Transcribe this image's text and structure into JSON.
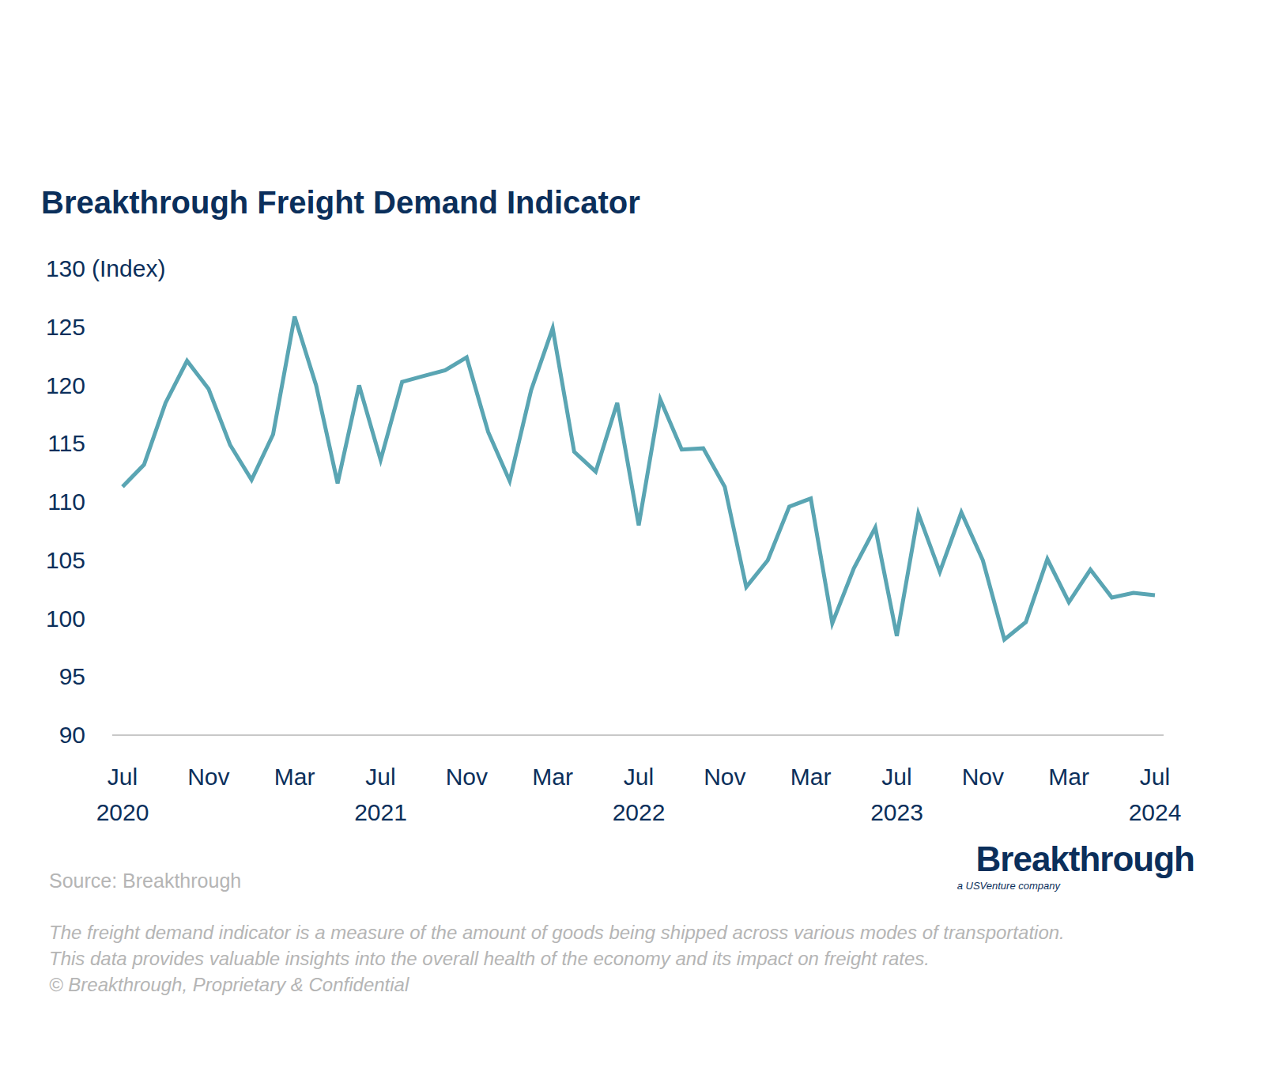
{
  "chart_data": {
    "type": "line",
    "title": "Breakthrough Freight Demand Indicator",
    "y_label": "(Index)",
    "categories": [
      "Jul 2020",
      null,
      null,
      null,
      "Nov",
      null,
      null,
      null,
      "Mar",
      null,
      null,
      null,
      "Jul 2021",
      null,
      null,
      null,
      "Nov",
      null,
      null,
      null,
      "Mar",
      null,
      null,
      null,
      "Jul 2022",
      null,
      null,
      null,
      "Nov",
      null,
      null,
      null,
      "Mar",
      null,
      null,
      null,
      "Jul 2023",
      null,
      null,
      null,
      "Nov",
      null,
      null,
      null,
      "Mar",
      null,
      null,
      null,
      "Jul 2024"
    ],
    "values": [
      111.3,
      113.2,
      118.5,
      122.1,
      119.7,
      114.9,
      111.9,
      115.8,
      125.9,
      120.0,
      111.6,
      120.0,
      113.6,
      120.3,
      120.8,
      121.3,
      122.4,
      116.0,
      111.8,
      119.6,
      124.9,
      114.3,
      112.6,
      118.5,
      108.0,
      118.8,
      114.5,
      114.6,
      111.3,
      102.7,
      105.0,
      109.6,
      110.3,
      99.6,
      104.3,
      107.8,
      98.5,
      109.0,
      104.0,
      109.1,
      105.0,
      98.2,
      99.7,
      105.1,
      101.4,
      104.2,
      101.8,
      102.2,
      102.0
    ],
    "color": "#5aa5b3",
    "ylim": [
      90,
      130
    ],
    "yticks": [
      90,
      95,
      100,
      105,
      110,
      115,
      120,
      125,
      130
    ],
    "grid": false,
    "source": "Source: Breakthrough",
    "footnote": [
      "The freight demand indicator is a measure of the amount of goods being shipped across various modes of transportation.",
      "This data provides valuable insights into the overall health of the economy and its impact on freight rates.",
      "© Breakthrough, Proprietary & Confidential"
    ],
    "logo": "Breakthrough",
    "logo_tagline": "a USVenture company"
  }
}
